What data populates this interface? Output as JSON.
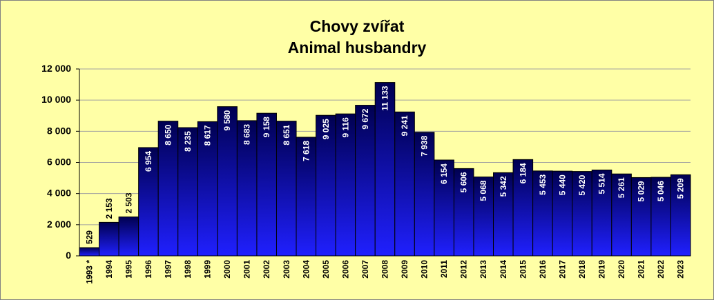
{
  "chart_data": {
    "type": "bar",
    "title": "Chovy zvířat",
    "subtitle": "Animal husbandry",
    "categories": [
      "1993 *",
      "1994",
      "1995",
      "1996",
      "1997",
      "1998",
      "1999",
      "2000",
      "2001",
      "2002",
      "2003",
      "2004",
      "2005",
      "2006",
      "2007",
      "2008",
      "2009",
      "2010",
      "2011",
      "2012",
      "2013",
      "2014",
      "2015",
      "2016",
      "2017",
      "2018",
      "2019",
      "2020",
      "2021",
      "2022",
      "2023"
    ],
    "values": [
      529,
      2153,
      2503,
      6954,
      8650,
      8235,
      8617,
      9580,
      8683,
      9158,
      8651,
      7618,
      9025,
      9116,
      9672,
      11133,
      9241,
      7938,
      6154,
      5606,
      5068,
      5342,
      6184,
      5453,
      5440,
      5420,
      5514,
      5261,
      5029,
      5046,
      5209
    ],
    "value_labels": [
      "529",
      "2 153",
      "2 503",
      "6 954",
      "8 650",
      "8 235",
      "8 617",
      "9 580",
      "8 683",
      "9 158",
      "8 651",
      "7 618",
      "9 025",
      "9 116",
      "9 672",
      "11 133",
      "9 241",
      "7 938",
      "6 154",
      "5 606",
      "5 068",
      "5 342",
      "6 184",
      "5 453",
      "5 440",
      "5 420",
      "5 514",
      "5 261",
      "5 029",
      "5 046",
      "5 209"
    ],
    "color": "#2020ff",
    "ylim": [
      0,
      12000
    ],
    "yticks": [
      0,
      {
        "value": 2000,
        "label": "2 000"
      },
      {
        "value": 4000,
        "label": "4 000"
      },
      {
        "value": 6000,
        "label": "6 000"
      },
      {
        "value": 8000,
        "label": "8 000"
      },
      {
        "value": 10000,
        "label": "10 000"
      },
      {
        "value": 12000,
        "label": "12 000"
      }
    ],
    "grid": true
  }
}
